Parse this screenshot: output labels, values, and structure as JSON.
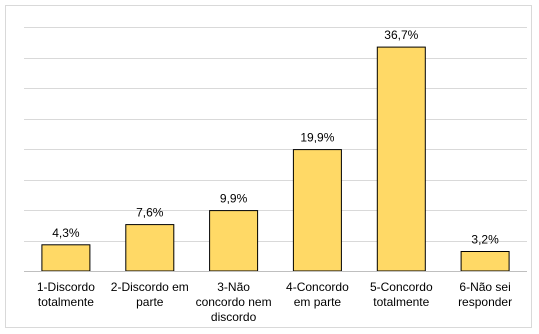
{
  "chart_data": {
    "type": "bar",
    "categories": [
      [
        "1-Discordo",
        "totalmente"
      ],
      [
        "2-Discordo em",
        "parte"
      ],
      [
        "3-Não",
        "concordo nem",
        "discordo"
      ],
      [
        "4-Concordo",
        "em parte"
      ],
      [
        "5-Concordo",
        "totalmente"
      ],
      [
        "6-Não sei",
        "responder"
      ]
    ],
    "values": [
      4.3,
      7.6,
      9.9,
      19.9,
      36.7,
      3.2
    ],
    "data_labels": [
      "4,3%",
      "7,6%",
      "9,9%",
      "19,9%",
      "36,7%",
      "3,2%"
    ],
    "ylim": [
      0,
      40
    ],
    "grid": true,
    "legend": "none",
    "title": "",
    "xlabel": "",
    "ylabel": "",
    "bar_color": "#FFD966",
    "bar_edge_color": "#000000",
    "grid_color": "#d9d9d9"
  }
}
